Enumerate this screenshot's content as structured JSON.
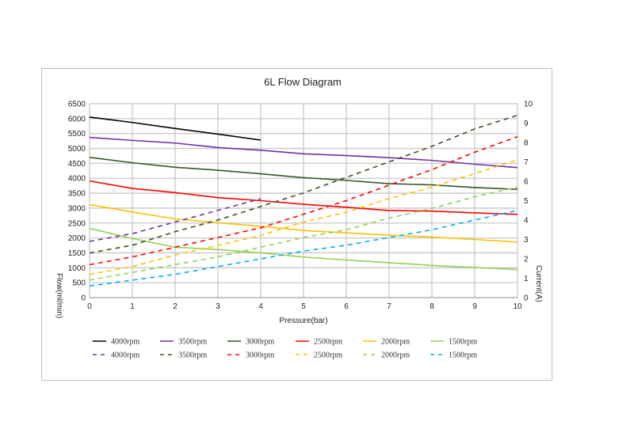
{
  "chart_data": {
    "type": "line",
    "title": "6L Flow Diagram",
    "xlabel": "Pressure(bar)",
    "ylabel": "Flow(ml/min)",
    "y2label": "Current(A)",
    "xlim": [
      0,
      10
    ],
    "ylim": [
      0,
      6500
    ],
    "y2lim": [
      0,
      10
    ],
    "grid": true,
    "legend_position": "bottom",
    "x_ticks": [
      "0",
      "1",
      "2",
      "3",
      "4",
      "5",
      "6",
      "7",
      "8",
      "9",
      "10"
    ],
    "y_ticks": [
      "0",
      "500",
      "1000",
      "1500",
      "2000",
      "2500",
      "3000",
      "3500",
      "4000",
      "4500",
      "5000",
      "5500",
      "6000",
      "6500"
    ],
    "y2_ticks": [
      "0",
      "1",
      "2",
      "3",
      "4",
      "5",
      "6",
      "7",
      "8",
      "9",
      "10"
    ],
    "series": [
      {
        "name": "4000rpm",
        "axis": "left",
        "style": "solid",
        "color": "#000000",
        "x": [
          0,
          1,
          2,
          3,
          4
        ],
        "values": [
          6050,
          5870,
          5670,
          5480,
          5280
        ]
      },
      {
        "name": "3500rpm",
        "axis": "left",
        "style": "solid",
        "color": "#7030a0",
        "x": [
          0,
          1,
          2,
          3,
          4,
          5,
          6,
          7,
          8,
          9,
          10
        ],
        "values": [
          5370,
          5270,
          5180,
          5030,
          4940,
          4820,
          4760,
          4690,
          4600,
          4470,
          4360
        ]
      },
      {
        "name": "3000rpm",
        "axis": "left",
        "style": "solid",
        "color": "#375623",
        "x": [
          0,
          1,
          2,
          3,
          4,
          5,
          6,
          7,
          8,
          9,
          10
        ],
        "values": [
          4700,
          4520,
          4370,
          4270,
          4150,
          4020,
          3930,
          3820,
          3780,
          3690,
          3630
        ]
      },
      {
        "name": "2500rpm",
        "axis": "left",
        "style": "solid",
        "color": "#ff0000",
        "x": [
          0,
          1,
          2,
          3,
          4,
          5,
          6,
          7,
          8,
          9,
          10
        ],
        "values": [
          3910,
          3660,
          3520,
          3350,
          3250,
          3130,
          3030,
          2920,
          2900,
          2840,
          2790
        ]
      },
      {
        "name": "2000rpm",
        "axis": "left",
        "style": "solid",
        "color": "#ffc000",
        "x": [
          0,
          1,
          2,
          3,
          4,
          5,
          6,
          7,
          8,
          9,
          10
        ],
        "values": [
          3120,
          2870,
          2640,
          2510,
          2390,
          2250,
          2170,
          2090,
          2030,
          1950,
          1860
        ]
      },
      {
        "name": "1500rpm",
        "axis": "left",
        "style": "solid",
        "color": "#92d050",
        "x": [
          0,
          1,
          2,
          3,
          4,
          5,
          6,
          7,
          8,
          9,
          10
        ],
        "values": [
          2320,
          1980,
          1690,
          1610,
          1500,
          1360,
          1260,
          1170,
          1080,
          1010,
          940
        ]
      },
      {
        "name": "4000rpm",
        "axis": "right",
        "style": "dashed",
        "color": "#7030a0",
        "x": [
          0,
          1,
          2,
          3,
          4
        ],
        "values": [
          2.9,
          3.3,
          3.9,
          4.5,
          5.1
        ]
      },
      {
        "name": "3500rpm",
        "axis": "right",
        "style": "dashed",
        "color": "#375623",
        "x": [
          0,
          1,
          2,
          3,
          4,
          5,
          6,
          7,
          8,
          9,
          10
        ],
        "values": [
          2.3,
          2.7,
          3.4,
          4.0,
          4.7,
          5.4,
          6.2,
          7.0,
          7.8,
          8.7,
          9.4
        ]
      },
      {
        "name": "3000rpm",
        "axis": "right",
        "style": "dashed",
        "color": "#ff0000",
        "x": [
          0,
          1,
          2,
          3,
          4,
          5,
          6,
          7,
          8,
          9,
          10
        ],
        "values": [
          1.7,
          2.1,
          2.6,
          3.1,
          3.6,
          4.3,
          5.0,
          5.8,
          6.6,
          7.5,
          8.3
        ]
      },
      {
        "name": "2500rpm",
        "axis": "right",
        "style": "dashed",
        "color": "#ffc000",
        "x": [
          0,
          1,
          2,
          3,
          4,
          5,
          6,
          7,
          8,
          9,
          10
        ],
        "values": [
          1.2,
          1.6,
          2.2,
          2.7,
          3.2,
          3.9,
          4.4,
          5.1,
          5.7,
          6.4,
          7.1
        ]
      },
      {
        "name": "2000rpm",
        "axis": "right",
        "style": "dashed",
        "color": "#92d050",
        "x": [
          0,
          1,
          2,
          3,
          4,
          5,
          6,
          7,
          8,
          9,
          10
        ],
        "values": [
          0.9,
          1.3,
          1.7,
          2.1,
          2.6,
          3.1,
          3.5,
          4.1,
          4.6,
          5.2,
          5.7
        ]
      },
      {
        "name": "1500rpm",
        "axis": "right",
        "style": "dashed",
        "color": "#00b0f0",
        "x": [
          0,
          1,
          2,
          3,
          4,
          5,
          6,
          7,
          8,
          9,
          10
        ],
        "values": [
          0.6,
          0.9,
          1.2,
          1.6,
          2.0,
          2.4,
          2.7,
          3.1,
          3.5,
          4.0,
          4.5
        ]
      }
    ]
  }
}
